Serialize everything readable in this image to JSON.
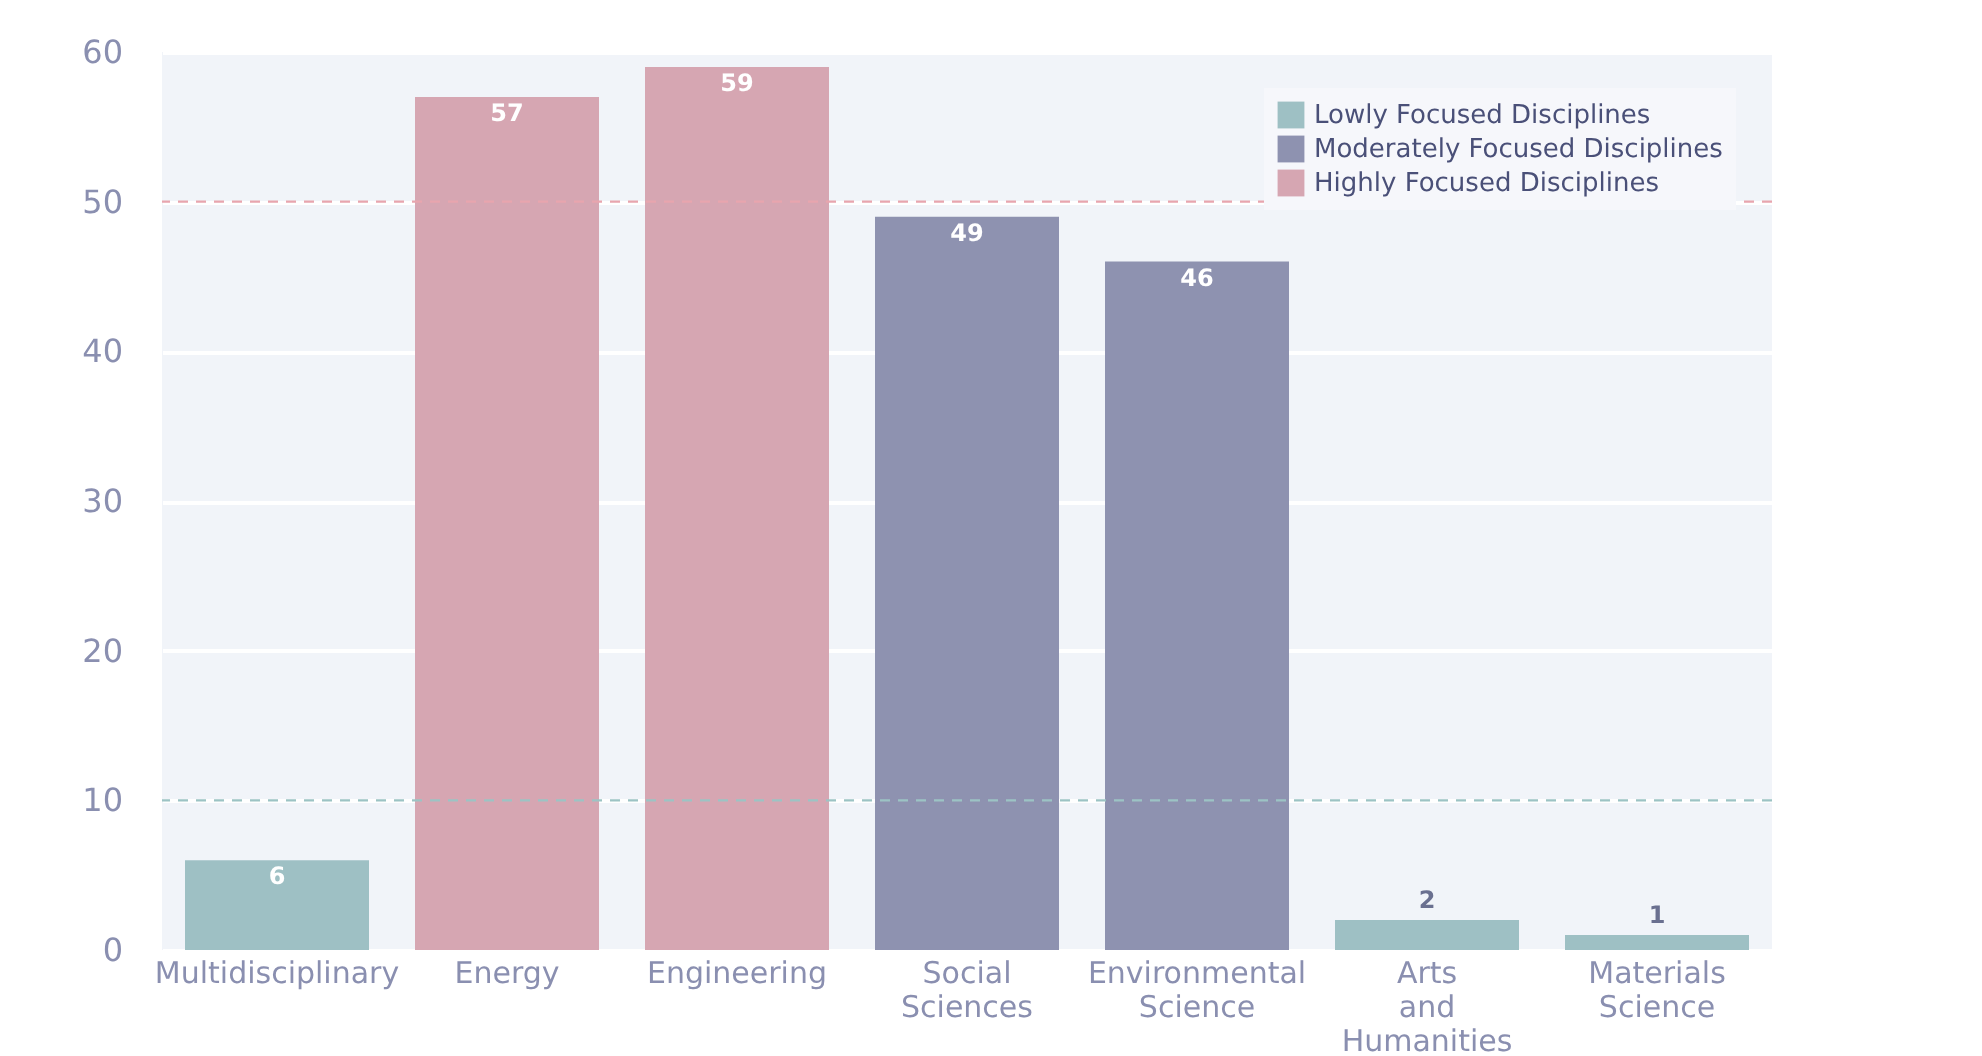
{
  "chart_data": {
    "type": "bar",
    "categories": [
      "Multidisciplinary",
      "Energy",
      "Engineering",
      "Social Sciences",
      "Environmental Science",
      "Arts and Humanities",
      "Materials Science"
    ],
    "series": [
      {
        "name": "Lowly Focused Disciplines",
        "color": "#9ec0c4",
        "values": [
          6,
          null,
          null,
          null,
          null,
          2,
          1
        ]
      },
      {
        "name": "Moderately Focused Disciplines",
        "color": "#8e92b0",
        "values": [
          null,
          null,
          null,
          49,
          46,
          null,
          null
        ]
      },
      {
        "name": "Highly Focused Disciplines",
        "color": "#d6a6b2",
        "values": [
          null,
          57,
          59,
          null,
          null,
          null,
          null
        ]
      }
    ],
    "ylim": [
      0,
      60
    ],
    "yticks": [
      0,
      10,
      20,
      30,
      40,
      50,
      60
    ],
    "ref_lines": [
      {
        "axis": "y",
        "value": 50,
        "color": "#e8a5ae",
        "line_style": "dashed"
      },
      {
        "axis": "y",
        "value": 10,
        "color": "#9cc3c4",
        "line_style": "dashed"
      }
    ],
    "data_labels": true,
    "grid": "y",
    "legend": "top right"
  }
}
